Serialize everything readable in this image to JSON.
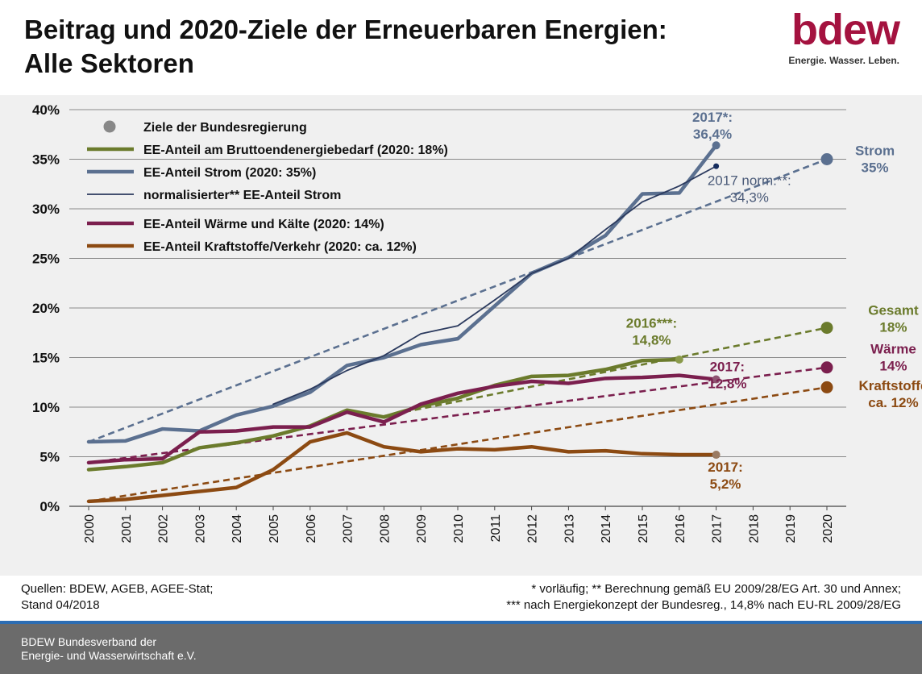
{
  "header": {
    "title_line1": "Beitrag und 2020-Ziele der Erneuerbaren Energien:",
    "title_line2": "Alle Sektoren"
  },
  "logo": {
    "brand": "bdew",
    "tagline": "Energie. Wasser. Leben."
  },
  "notes": {
    "sources_line1": "Quellen: BDEW, AGEB, AGEE-Stat;",
    "sources_line2": "Stand 04/2018",
    "footnote_line1": "* vorläufig; ** Berechnung gemäß EU 2009/28/EG Art. 30 und Annex;",
    "footnote_line2": "*** nach Energiekonzept der Bundesreg., 14,8% nach EU-RL 2009/28/EG"
  },
  "footer": {
    "org_line1": "BDEW Bundesverband der",
    "org_line2": "Energie- und Wasserwirtschaft e.V."
  },
  "chart_data": {
    "type": "line",
    "title": "",
    "xlabel": "",
    "ylabel": "",
    "x": [
      "2000",
      "2001",
      "2002",
      "2003",
      "2004",
      "2005",
      "2006",
      "2007",
      "2008",
      "2009",
      "2010",
      "2011",
      "2012",
      "2013",
      "2014",
      "2015",
      "2016",
      "2017",
      "2018",
      "2019",
      "2020"
    ],
    "ylim": [
      0,
      40
    ],
    "yticks": [
      0,
      5,
      10,
      15,
      20,
      25,
      30,
      35,
      40
    ],
    "ytick_labels": [
      "0%",
      "5%",
      "10%",
      "15%",
      "20%",
      "25%",
      "30%",
      "35%",
      "40%"
    ],
    "grid": true,
    "legend_position": "top-left",
    "legend": [
      {
        "label": "Ziele der Bundesregierung",
        "kind": "dot",
        "color": "#888888"
      },
      {
        "label": "EE-Anteil am Bruttoendenergiebedarf (2020: 18%)",
        "kind": "line",
        "color": "#6b7b2c"
      },
      {
        "label": "EE-Anteil Strom (2020: 35%)",
        "kind": "line",
        "color": "#5b7090"
      },
      {
        "label": "normalisierter** EE-Anteil Strom",
        "kind": "thin",
        "color": "#2b3a5e"
      },
      {
        "label": "EE-Anteil Wärme und Kälte (2020: 14%)",
        "kind": "line",
        "color": "#7b1f4e"
      },
      {
        "label": "EE-Anteil Kraftstoffe/Verkehr (2020: ca. 12%)",
        "kind": "line",
        "color": "#8c4a12"
      }
    ],
    "series": [
      {
        "key": "gesamt",
        "color": "#6b7b2c",
        "width": 4.5,
        "x": [
          2000,
          2001,
          2002,
          2003,
          2004,
          2005,
          2006,
          2007,
          2008,
          2009,
          2010,
          2011,
          2012,
          2013,
          2014,
          2015,
          2016
        ],
        "values": [
          3.7,
          4.0,
          4.4,
          5.9,
          6.4,
          7.1,
          8.1,
          9.7,
          9.0,
          10.1,
          10.9,
          12.2,
          13.1,
          13.2,
          13.8,
          14.7,
          14.8
        ]
      },
      {
        "key": "strom",
        "color": "#5b7090",
        "width": 4.5,
        "x": [
          2000,
          2001,
          2002,
          2003,
          2004,
          2005,
          2006,
          2007,
          2008,
          2009,
          2010,
          2011,
          2012,
          2013,
          2014,
          2015,
          2016,
          2017
        ],
        "values": [
          6.5,
          6.6,
          7.8,
          7.6,
          9.2,
          10.1,
          11.5,
          14.2,
          15.0,
          16.3,
          16.9,
          20.2,
          23.5,
          25.1,
          27.3,
          31.5,
          31.6,
          36.4
        ]
      },
      {
        "key": "strom_norm",
        "color": "#2b3a5e",
        "width": 1.8,
        "x": [
          2005,
          2006,
          2007,
          2008,
          2009,
          2010,
          2011,
          2012,
          2013,
          2014,
          2015,
          2016,
          2017
        ],
        "values": [
          10.3,
          11.8,
          13.7,
          15.2,
          17.4,
          18.2,
          20.8,
          23.5,
          25.0,
          27.9,
          30.7,
          32.3,
          34.3
        ]
      },
      {
        "key": "waerme",
        "color": "#7b1f4e",
        "width": 4.5,
        "x": [
          2000,
          2001,
          2002,
          2003,
          2004,
          2005,
          2006,
          2007,
          2008,
          2009,
          2010,
          2011,
          2012,
          2013,
          2014,
          2015,
          2016,
          2017
        ],
        "values": [
          4.4,
          4.7,
          4.8,
          7.5,
          7.6,
          8.0,
          8.0,
          9.5,
          8.5,
          10.3,
          11.4,
          12.1,
          12.6,
          12.4,
          12.9,
          13.0,
          13.2,
          12.8
        ]
      },
      {
        "key": "kraftstoffe",
        "color": "#8c4a12",
        "width": 4.5,
        "x": [
          2000,
          2001,
          2002,
          2003,
          2004,
          2005,
          2006,
          2007,
          2008,
          2009,
          2010,
          2011,
          2012,
          2013,
          2014,
          2015,
          2016,
          2017
        ],
        "values": [
          0.5,
          0.7,
          1.1,
          1.5,
          1.9,
          3.7,
          6.5,
          7.4,
          6.0,
          5.5,
          5.8,
          5.7,
          6.0,
          5.5,
          5.6,
          5.3,
          5.2,
          5.2
        ]
      }
    ],
    "targets": [
      {
        "key": "strom",
        "color": "#5b7090",
        "from": [
          2000,
          6.5
        ],
        "to": [
          2020,
          35
        ]
      },
      {
        "key": "gesamt",
        "color": "#6b7b2c",
        "from": [
          2008,
          9.1
        ],
        "to": [
          2020,
          18
        ]
      },
      {
        "key": "waerme",
        "color": "#7b1f4e",
        "from": [
          2000,
          4.4
        ],
        "to": [
          2020,
          14
        ]
      },
      {
        "key": "kraftstoffe",
        "color": "#8c4a12",
        "from": [
          2000,
          0.5
        ],
        "to": [
          2020,
          12
        ]
      }
    ],
    "endpoints": [
      {
        "key": "strom",
        "year": 2017,
        "value": 36.4,
        "color": "#5b7090",
        "r": 5
      },
      {
        "key": "strom_norm",
        "year": 2017,
        "value": 34.3,
        "color": "#152c5e",
        "r": 3.5
      },
      {
        "key": "gesamt",
        "year": 2016,
        "value": 14.8,
        "color": "#8a9a4a",
        "r": 5
      },
      {
        "key": "waerme",
        "year": 2017,
        "value": 12.8,
        "color": "#8f5472",
        "r": 5
      },
      {
        "key": "kraftstoffe",
        "year": 2017,
        "value": 5.2,
        "color": "#9a7a62",
        "r": 5
      }
    ],
    "target_dots": [
      {
        "key": "strom",
        "year": 2020,
        "value": 35,
        "color": "#5b7090"
      },
      {
        "key": "gesamt",
        "year": 2020,
        "value": 18,
        "color": "#6b7b2c"
      },
      {
        "key": "waerme",
        "year": 2020,
        "value": 14,
        "color": "#7b1f4e"
      },
      {
        "key": "kraftstoffe",
        "year": 2020,
        "value": 12,
        "color": "#8c4a12"
      }
    ],
    "annotations": [
      {
        "key": "strom-2017",
        "year": 2016.9,
        "value": 38.8,
        "lines": [
          "2017*:",
          "36,4%"
        ],
        "color": "#5b7090",
        "bold": true,
        "anchor": "middle"
      },
      {
        "key": "strom-norm-2017",
        "year": 2017.9,
        "value": 32.4,
        "lines": [
          "2017 norm.**:",
          "34,3%"
        ],
        "color": "#4a5a78",
        "bold": false,
        "anchor": "middle"
      },
      {
        "key": "strom-target",
        "year": 2021.3,
        "value": 35.4,
        "lines": [
          "Strom",
          "35%"
        ],
        "color": "#5b7090",
        "bold": true,
        "anchor": "middle"
      },
      {
        "key": "gesamt-2016",
        "year": 2015.25,
        "value": 18.0,
        "lines": [
          "2016***:",
          "14,8%"
        ],
        "color": "#6b7b2c",
        "bold": true,
        "anchor": "middle"
      },
      {
        "key": "gesamt-target",
        "year": 2021.8,
        "value": 19.3,
        "lines": [
          "Gesamt",
          "18%"
        ],
        "color": "#6b7b2c",
        "bold": true,
        "anchor": "middle"
      },
      {
        "key": "waerme-2017",
        "year": 2017.3,
        "value": 13.6,
        "lines": [
          "2017:",
          "12,8%"
        ],
        "color": "#7b1f4e",
        "bold": true,
        "anchor": "middle"
      },
      {
        "key": "waerme-target",
        "year": 2021.8,
        "value": 15.4,
        "lines": [
          "Wärme",
          "14%"
        ],
        "color": "#7b1f4e",
        "bold": true,
        "anchor": "middle"
      },
      {
        "key": "kraftstoffe-target",
        "year": 2021.8,
        "value": 11.7,
        "lines": [
          "Kraftstoffe",
          "ca. 12%"
        ],
        "color": "#8c4a12",
        "bold": true,
        "anchor": "middle"
      },
      {
        "key": "kraftstoffe-2017",
        "year": 2017.25,
        "value": 3.5,
        "lines": [
          "2017:",
          "5,2%"
        ],
        "color": "#8c4a12",
        "bold": true,
        "anchor": "middle"
      }
    ]
  }
}
